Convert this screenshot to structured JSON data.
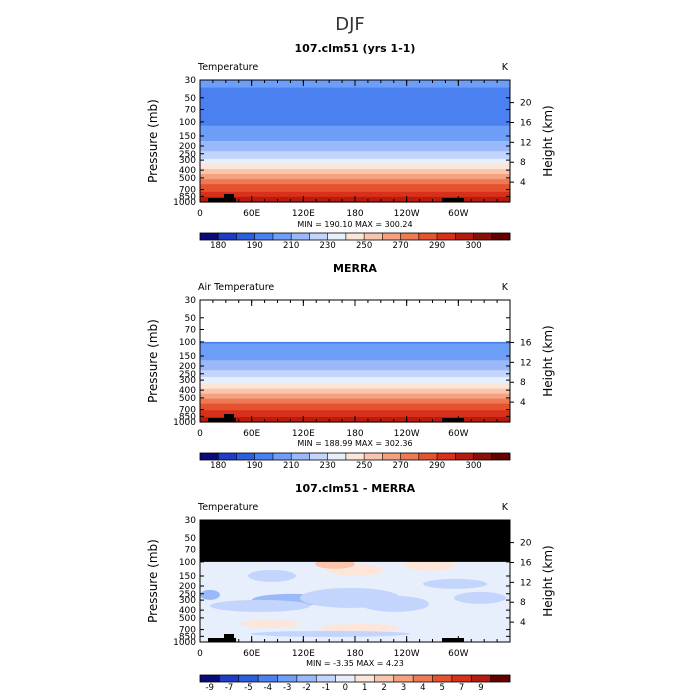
{
  "figure": {
    "title": "DJF"
  },
  "chart_data": [
    {
      "type": "heatmap",
      "title": "107.clm51 (yrs 1-1)",
      "field_label": "Temperature",
      "units": "K",
      "ylabel": "Pressure (mb)",
      "y2label": "Height (km)",
      "x_ticks": [
        "0",
        "60E",
        "120E",
        "180",
        "120W",
        "60W"
      ],
      "p_ticks": [
        30,
        50,
        70,
        100,
        150,
        200,
        250,
        300,
        400,
        500,
        700,
        850,
        1000
      ],
      "p_range": [
        30,
        1000
      ],
      "height_ticks": [
        4,
        8,
        12,
        16,
        20
      ],
      "data_top_pressure": 30,
      "masked_region": null,
      "profile": [
        [
          1000,
          289
        ],
        [
          850,
          281
        ],
        [
          700,
          273
        ],
        [
          500,
          257
        ],
        [
          400,
          246
        ],
        [
          300,
          231
        ],
        [
          250,
          223
        ],
        [
          200,
          216
        ],
        [
          150,
          210
        ],
        [
          100,
          204
        ],
        [
          70,
          201
        ],
        [
          50,
          203
        ],
        [
          30,
          208
        ]
      ],
      "stats": {
        "min_label": "MIN = ",
        "min": "190.10",
        "max_label": "MAX = ",
        "max": "300.24"
      },
      "colorbar": {
        "labels": [
          "180",
          "190",
          "210",
          "230",
          "250",
          "270",
          "290",
          "300"
        ],
        "colors": [
          "#0a0a78",
          "#1e3cc8",
          "#2e5ee0",
          "#4a80f0",
          "#6d9ef8",
          "#9ab9fa",
          "#c3d5fc",
          "#e8effc",
          "#fbe6d9",
          "#f9c6ad",
          "#f5a07f",
          "#ee7a55",
          "#e5532e",
          "#d8301a",
          "#b81a0f",
          "#8a0f08",
          "#640000"
        ]
      }
    },
    {
      "type": "heatmap",
      "title": "MERRA",
      "field_label": "Air Temperature",
      "units": "K",
      "ylabel": "Pressure (mb)",
      "y2label": "Height (km)",
      "x_ticks": [
        "0",
        "60E",
        "120E",
        "180",
        "120W",
        "60W"
      ],
      "p_ticks": [
        30,
        50,
        70,
        100,
        150,
        200,
        250,
        300,
        400,
        500,
        700,
        850,
        1000
      ],
      "p_range": [
        30,
        1000
      ],
      "height_ticks": [
        4,
        8,
        12,
        16
      ],
      "data_top_pressure": 100,
      "masked_region": null,
      "profile": [
        [
          1000,
          291
        ],
        [
          850,
          282
        ],
        [
          700,
          274
        ],
        [
          500,
          258
        ],
        [
          400,
          247
        ],
        [
          300,
          232
        ],
        [
          250,
          224
        ],
        [
          200,
          217
        ],
        [
          150,
          211
        ],
        [
          100,
          205
        ]
      ],
      "stats": {
        "min_label": "MIN = ",
        "min": "188.99",
        "max_label": "MAX = ",
        "max": "302.36"
      },
      "colorbar": {
        "labels": [
          "180",
          "190",
          "210",
          "230",
          "250",
          "270",
          "290",
          "300"
        ],
        "colors": [
          "#0a0a78",
          "#1e3cc8",
          "#2e5ee0",
          "#4a80f0",
          "#6d9ef8",
          "#9ab9fa",
          "#c3d5fc",
          "#e8effc",
          "#fbe6d9",
          "#f9c6ad",
          "#f5a07f",
          "#ee7a55",
          "#e5532e",
          "#d8301a",
          "#b81a0f",
          "#8a0f08",
          "#640000"
        ]
      }
    },
    {
      "type": "heatmap",
      "title": "107.clm51 - MERRA",
      "field_label": "Temperature",
      "units": "K",
      "ylabel": "Pressure (mb)",
      "y2label": "Height (km)",
      "x_ticks": [
        "0",
        "60E",
        "120E",
        "180",
        "120W",
        "60W"
      ],
      "p_ticks": [
        30,
        50,
        70,
        100,
        150,
        200,
        250,
        300,
        400,
        500,
        700,
        850,
        1000
      ],
      "p_range": [
        30,
        1000
      ],
      "height_ticks": [
        4,
        8,
        12,
        16,
        20
      ],
      "data_top_pressure": 1000,
      "masked_region": {
        "p_top": 30,
        "p_bottom": 100
      },
      "diff_field": true,
      "stats": {
        "min_label": "MIN = ",
        "min": "-3.35",
        "max_label": "MAX = ",
        "max": "4.23"
      },
      "colorbar": {
        "labels": [
          "-9",
          "-7",
          "-5",
          "-4",
          "-3",
          "-2",
          "-1",
          "0",
          "1",
          "2",
          "3",
          "4",
          "5",
          "7",
          "9"
        ],
        "colors": [
          "#0a0a78",
          "#1e3cc8",
          "#2e5ee0",
          "#4a80f0",
          "#6d9ef8",
          "#9ab9fa",
          "#c3d5fc",
          "#e8effc",
          "#fbe6d9",
          "#f9c6ad",
          "#f5a07f",
          "#ee7a55",
          "#e5532e",
          "#d8301a",
          "#b81a0f",
          "#640000"
        ]
      }
    }
  ]
}
